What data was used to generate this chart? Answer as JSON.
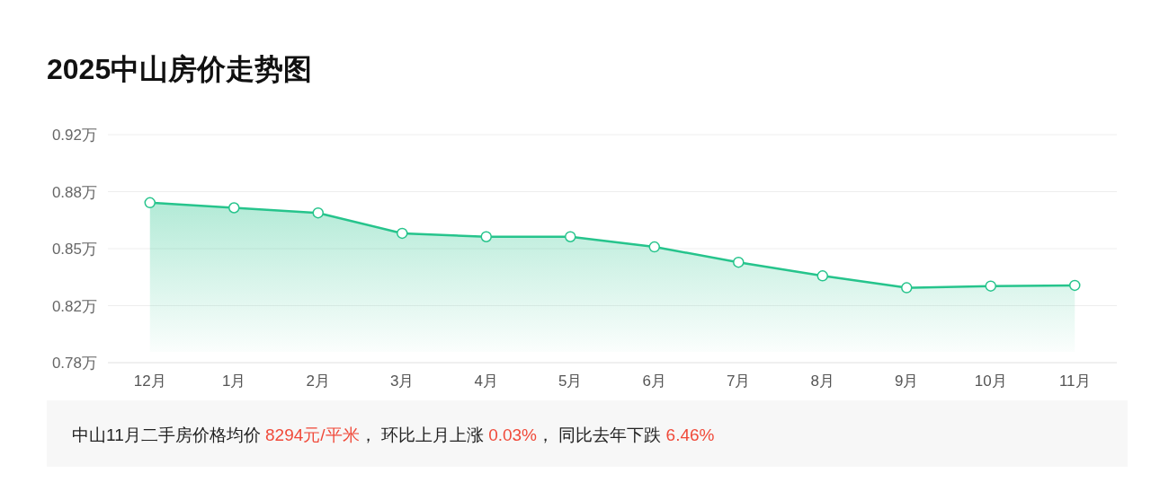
{
  "chart_data": {
    "type": "area",
    "title": "2025中山房价走势图",
    "categories": [
      "12月",
      "1月",
      "2月",
      "3月",
      "4月",
      "5月",
      "6月",
      "7月",
      "8月",
      "9月",
      "10月",
      "11月"
    ],
    "series": [
      {
        "color": "#26c48c",
        "values": [
          0.878,
          0.875,
          0.872,
          0.86,
          0.858,
          0.858,
          0.852,
          0.843,
          0.835,
          0.828,
          0.829,
          0.8294
        ]
      }
    ],
    "ylim": [
      0.784,
      0.918
    ],
    "yticks": [
      {
        "value": 0.784,
        "label": "0.78万"
      },
      {
        "value": 0.8175,
        "label": "0.82万"
      },
      {
        "value": 0.851,
        "label": "0.85万"
      },
      {
        "value": 0.8845,
        "label": "0.88万"
      },
      {
        "value": 0.918,
        "label": "0.92万"
      }
    ],
    "grid": "y",
    "marker": "circle",
    "line_style": "solid",
    "annotations": [
      "中山11月二手房价格均价 ",
      "8294元/平米",
      "， 环比上月上涨 ",
      "0.03%",
      "， 同比去年下跌 ",
      "6.46%"
    ]
  }
}
